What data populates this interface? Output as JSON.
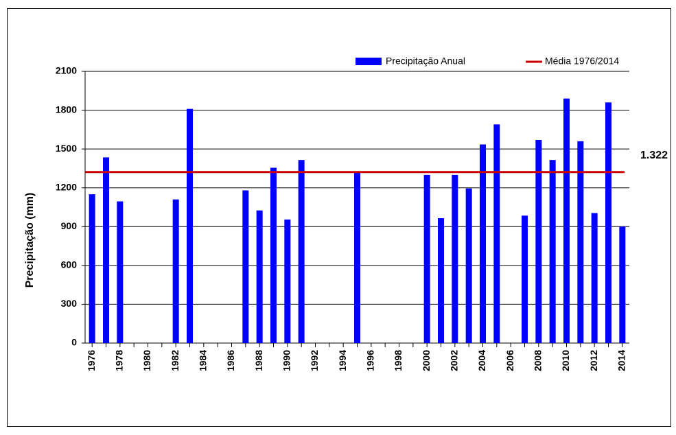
{
  "chart_data": {
    "type": "bar",
    "y_label": "Precipitação (mm)",
    "categories": [
      "1976",
      null,
      "1978",
      null,
      "1980",
      null,
      "1982",
      null,
      "1984",
      null,
      "1986",
      null,
      "1988",
      null,
      "1990",
      null,
      "1992",
      null,
      "1994",
      null,
      "1996",
      null,
      "1998",
      null,
      "2000",
      null,
      "2002",
      null,
      "2004",
      null,
      "2006",
      null,
      "2008",
      null,
      "2010",
      null,
      "2012",
      null,
      "2014"
    ],
    "series": [
      {
        "name": "Precipitação Anual",
        "color": "#0000ff",
        "values": [
          1150,
          1435,
          1095,
          null,
          null,
          null,
          1110,
          1810,
          null,
          null,
          null,
          1180,
          1025,
          1355,
          955,
          1415,
          null,
          null,
          null,
          1315,
          null,
          null,
          null,
          null,
          1300,
          965,
          1300,
          1195,
          1535,
          1690,
          null,
          985,
          1570,
          1415,
          1890,
          1560,
          1005,
          1860,
          900
        ]
      }
    ],
    "mean": {
      "name": "Média 1976/2014",
      "value": 1322,
      "value_label": "1.322",
      "color": "#cc0000"
    },
    "ylim": [
      0,
      2100
    ],
    "yticks": [
      0,
      300,
      600,
      900,
      1200,
      1500,
      1800,
      2100
    ],
    "grid": true
  }
}
